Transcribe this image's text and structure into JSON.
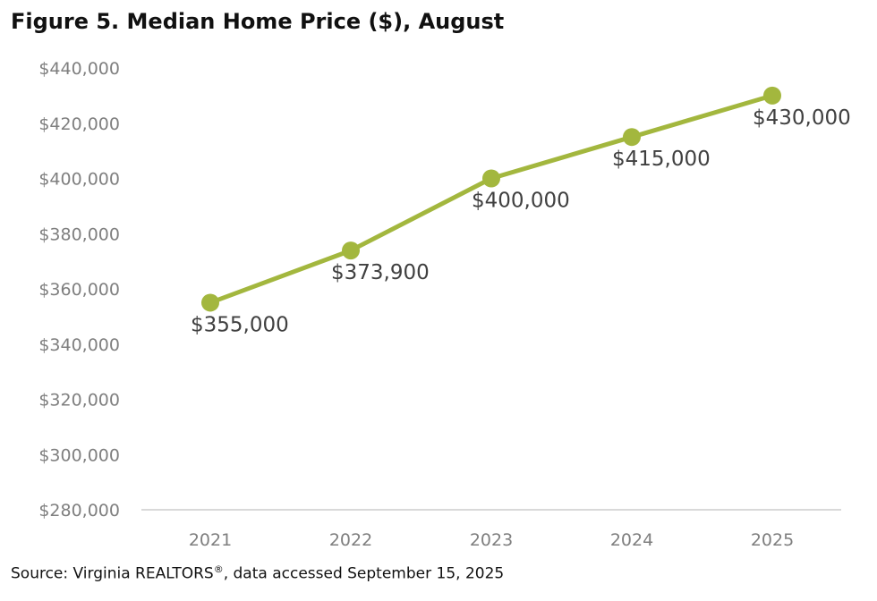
{
  "title": "Figure 5. Median Home Price ($), August",
  "source": {
    "text": "Source: Virginia REALTORS",
    "mark": "®",
    "suffix": ", data accessed September 15, 2025"
  },
  "colors": {
    "series": "#a3b73e",
    "axis": "#d9d9d9",
    "tick_text": "#7f7f7f",
    "label_text": "#404040"
  },
  "chart_data": {
    "type": "line",
    "title": "Figure 5. Median Home Price ($), August",
    "x": [
      "2021",
      "2022",
      "2023",
      "2024",
      "2025"
    ],
    "series": [
      {
        "values": [
          355000,
          373900,
          400000,
          415000,
          430000
        ]
      }
    ],
    "data_labels": [
      "$355,000",
      "$373,900",
      "$400,000",
      "$415,000",
      "$430,000"
    ],
    "ylim": [
      280000,
      440000
    ],
    "yticks": [
      280000,
      300000,
      320000,
      340000,
      360000,
      380000,
      400000,
      420000,
      440000
    ],
    "ytick_labels": [
      "$280,000",
      "$300,000",
      "$320,000",
      "$340,000",
      "$360,000",
      "$380,000",
      "$400,000",
      "$420,000",
      "$440,000"
    ],
    "xlabel": "",
    "ylabel": "",
    "grid": false,
    "legend": "none"
  }
}
